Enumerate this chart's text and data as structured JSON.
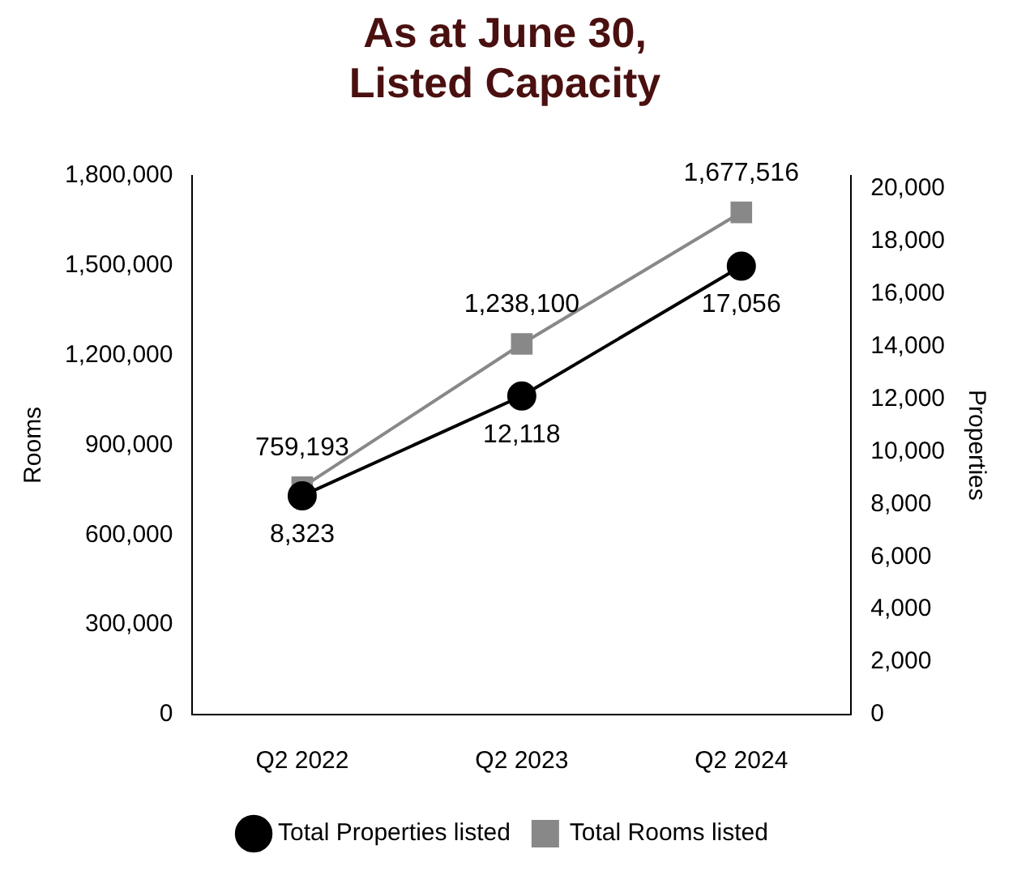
{
  "chart_data": {
    "type": "line",
    "title": "As at June 30,\nListed Capacity",
    "ylabel": "Rooms",
    "y2label": "Properties",
    "categories": [
      "Q2 2022",
      "Q2 2023",
      "Q2 2024"
    ],
    "series": [
      {
        "name": "Total Properties listed",
        "color": "#000000",
        "axis": "y2",
        "marker": "circle",
        "values": [
          8323,
          12118,
          17056
        ],
        "value_labels": [
          "8,323",
          "12,118",
          "17,056"
        ]
      },
      {
        "name": "Total Rooms listed",
        "color": "#888888",
        "marker": "square",
        "values": [
          759193,
          1238100,
          1677516
        ],
        "value_labels": [
          "759,193",
          "1,238,100",
          "1,677,516"
        ]
      }
    ],
    "ylim": [
      0,
      1800000
    ],
    "yticks": [
      0,
      {
        "value": 300000,
        "label": "300,000"
      },
      {
        "value": 600000,
        "label": "600,000"
      },
      {
        "value": 900000,
        "label": "900,000"
      },
      {
        "value": 1200000,
        "label": "1,200,000"
      },
      {
        "value": 1500000,
        "label": "1,500,000"
      },
      {
        "value": 1800000,
        "label": "1,800,000"
      }
    ],
    "y2lim": [
      0,
      20500
    ],
    "y2ticks": [
      0,
      {
        "value": 2000,
        "label": "2,000"
      },
      {
        "value": 4000,
        "label": "4,000"
      },
      {
        "value": 6000,
        "label": "6,000"
      },
      {
        "value": 8000,
        "label": "8,000"
      },
      {
        "value": 10000,
        "label": "10,000"
      },
      {
        "value": 12000,
        "label": "12,000"
      },
      {
        "value": 14000,
        "label": "14,000"
      },
      {
        "value": 16000,
        "label": "16,000"
      },
      {
        "value": 18000,
        "label": "18,000"
      },
      {
        "value": 20000,
        "label": "20,000"
      }
    ],
    "grid": false,
    "legend": "bottom",
    "line_style": "solid"
  }
}
